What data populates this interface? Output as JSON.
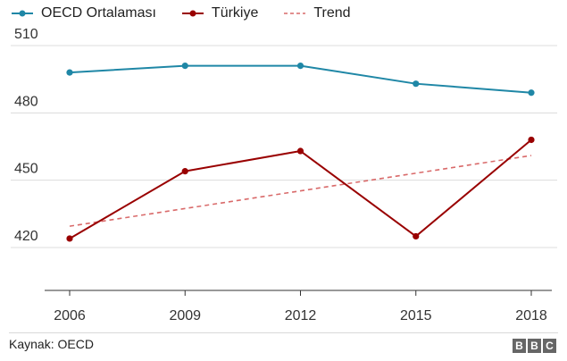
{
  "legend": {
    "items": [
      {
        "label": "OECD Ortalaması",
        "color": "#1f87a6",
        "style": "line-dot"
      },
      {
        "label": "Türkiye",
        "color": "#990000",
        "style": "line-dot"
      },
      {
        "label": "Trend",
        "color": "#d96a6a",
        "style": "dashed"
      }
    ]
  },
  "footer": {
    "source": "Kaynak: OECD",
    "logo_letters": [
      "B",
      "B",
      "C"
    ]
  },
  "chart_data": {
    "type": "line",
    "categories": [
      "2006",
      "2009",
      "2012",
      "2015",
      "2018"
    ],
    "series": [
      {
        "name": "OECD Ortalaması",
        "values": [
          498,
          501,
          501,
          493,
          489
        ],
        "color": "#1f87a6"
      },
      {
        "name": "Türkiye",
        "values": [
          424,
          454,
          463,
          425,
          468
        ],
        "color": "#990000"
      }
    ],
    "trend": {
      "name": "Trend",
      "start": 429.5,
      "end": 461,
      "color": "#d96a6a"
    },
    "ylim": [
      400,
      515
    ],
    "yticks": [
      420,
      450,
      480,
      510
    ],
    "grid": true,
    "legend_placement": "top-left",
    "title": "",
    "xlabel": "",
    "ylabel": ""
  }
}
